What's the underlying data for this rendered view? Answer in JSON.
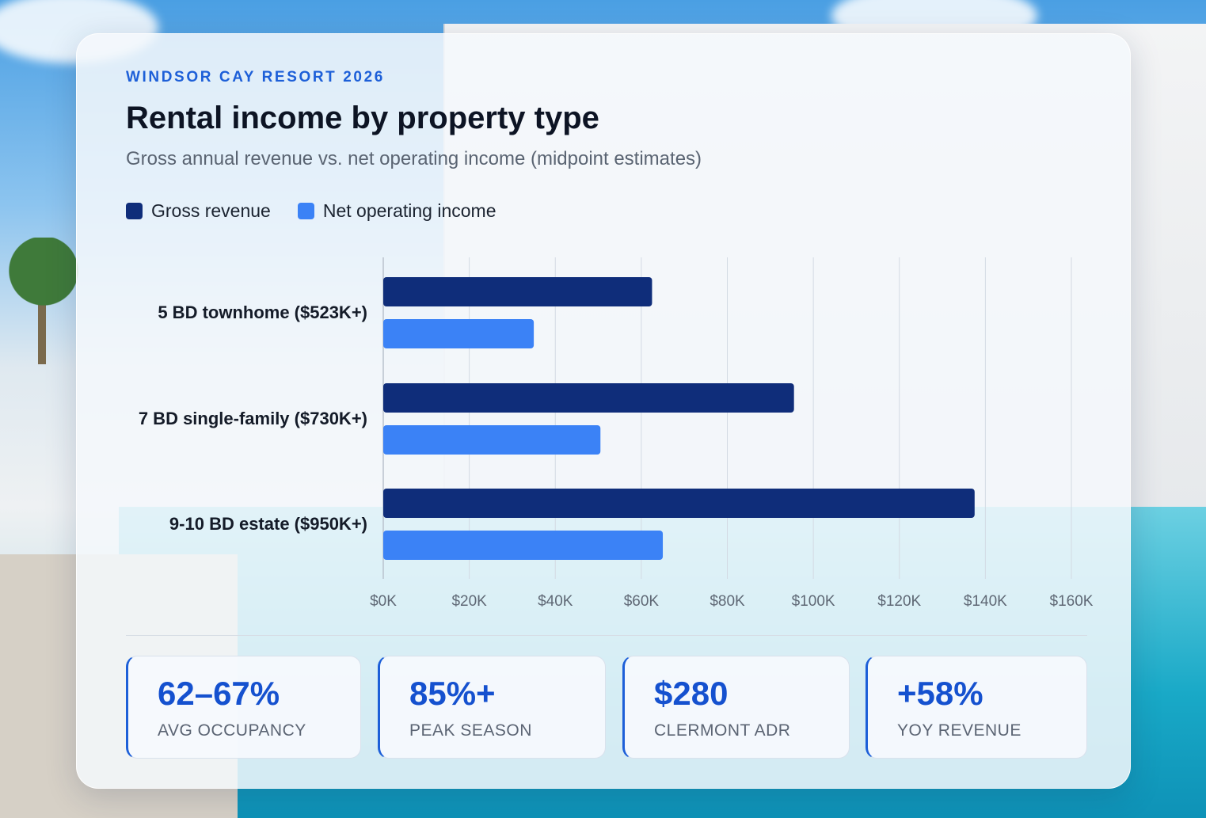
{
  "header": {
    "eyebrow": "WINDSOR CAY RESORT 2026",
    "title": "Rental income by property type",
    "subtitle": "Gross annual revenue vs. net operating income (midpoint estimates)"
  },
  "colors": {
    "gross": "#0f2d7a",
    "noi": "#3b82f6",
    "accent": "#1d5fd8"
  },
  "chart_data": {
    "type": "bar",
    "orientation": "horizontal",
    "categories": [
      "5 BD townhome ($523K+)",
      "7 BD single-family ($730K+)",
      "9-10 BD estate ($950K+)"
    ],
    "series": [
      {
        "name": "Gross revenue",
        "values": [
          62500,
          95500,
          137500
        ]
      },
      {
        "name": "Net operating income",
        "values": [
          35000,
          50500,
          65000
        ]
      }
    ],
    "xlim": [
      0,
      160000
    ],
    "xticks": [
      0,
      20000,
      40000,
      60000,
      80000,
      100000,
      120000,
      140000,
      160000
    ],
    "xtick_labels": [
      "$0K",
      "$20K",
      "$40K",
      "$60K",
      "$80K",
      "$100K",
      "$120K",
      "$140K",
      "$160K"
    ],
    "grid": "vertical",
    "legend": "top-left",
    "title": "Rental income by property type",
    "subtitle": "Gross annual revenue vs. net operating income (midpoint estimates)"
  },
  "stats": [
    {
      "value": "62–67%",
      "label": "AVG OCCUPANCY"
    },
    {
      "value": "85%+",
      "label": "PEAK SEASON"
    },
    {
      "value": "$280",
      "label": "CLERMONT ADR"
    },
    {
      "value": "+58%",
      "label": "YOY REVENUE"
    }
  ]
}
